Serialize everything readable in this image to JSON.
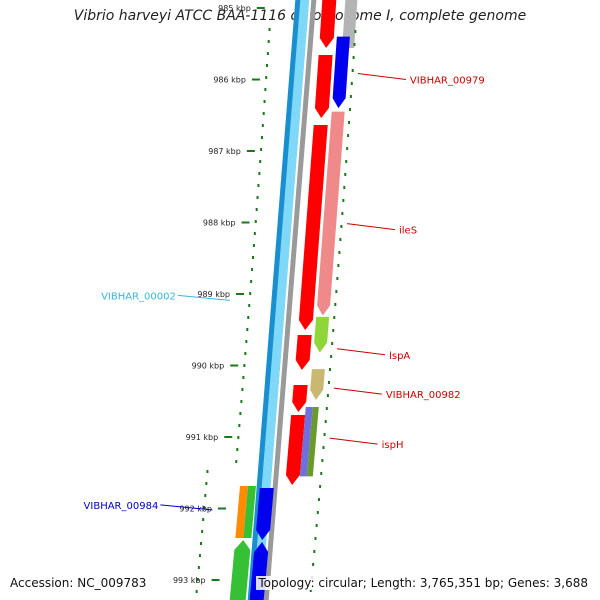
{
  "title": "Vibrio harveyi ATCC BAA-1116 chromosome I, complete genome",
  "footer": {
    "accession": "Accession: NC_009783",
    "summary": "Topology: circular; Length: 3,765,351 bp; Genes: 3,688"
  },
  "colors": {
    "backbone_dark": "#1a8fd0",
    "backbone_light": "#7fd8f8",
    "gray_track": "#b4b4b4",
    "cds": "#ff0000",
    "gene_blue": "#0000ee",
    "salmon": "#f08a8a",
    "lime": "#8fd63a",
    "olive": "#c8b870",
    "purple": "#7070dd",
    "olive_green": "#6a9a2a",
    "tick_green": "#1a7a1a",
    "orange": "#ff8c00",
    "green": "#36c036",
    "label_red": "#cc0000",
    "label_cyan": "#36b8dc",
    "label_blue": "#0000cc"
  },
  "ticks": [
    {
      "kbp": 985,
      "label": "985 kbp"
    },
    {
      "kbp": 986,
      "label": "986 kbp"
    },
    {
      "kbp": 987,
      "label": "987 kbp"
    },
    {
      "kbp": 988,
      "label": "988 kbp"
    },
    {
      "kbp": 989,
      "label": "989 kbp"
    },
    {
      "kbp": 990,
      "label": "990 kbp"
    },
    {
      "kbp": 991,
      "label": "991 kbp"
    },
    {
      "kbp": 992,
      "label": "992 kbp"
    },
    {
      "kbp": 993,
      "label": "993 kbp"
    }
  ],
  "features": [
    {
      "name": "VIBHAR_00979",
      "start_kbp": 985.4,
      "end_kbp": 986.4,
      "strand": "+",
      "track": "blue"
    },
    {
      "name": "ileS",
      "start_kbp": 986.45,
      "end_kbp": 989.3,
      "strand": "+",
      "track": "salmon"
    },
    {
      "name": "lspA",
      "start_kbp": 989.32,
      "end_kbp": 989.82,
      "strand": "+",
      "track": "lime"
    },
    {
      "name": "VIBHAR_00982",
      "start_kbp": 990.05,
      "end_kbp": 990.48,
      "strand": "+",
      "track": "olive"
    },
    {
      "name": "ispH",
      "start_kbp": 990.58,
      "end_kbp": 991.55,
      "strand": "+",
      "track": "purple"
    },
    {
      "name": "VIBHAR_00002",
      "start_kbp": 0,
      "end_kbp": 0,
      "strand": "-",
      "track": "outer"
    },
    {
      "name": "VIBHAR_00984",
      "start_kbp": 991.65,
      "end_kbp": 992.25,
      "strand": "-",
      "track": "inner"
    }
  ],
  "labels": [
    {
      "text": "VIBHAR_00979",
      "color": "label_red",
      "side": "right",
      "kbp": 986.0
    },
    {
      "text": "ileS",
      "color": "label_red",
      "side": "right",
      "kbp": 988.1
    },
    {
      "text": "lspA",
      "color": "label_red",
      "side": "right",
      "kbp": 989.85
    },
    {
      "text": "VIBHAR_00982",
      "color": "label_red",
      "side": "right",
      "kbp": 990.4
    },
    {
      "text": "ispH",
      "color": "label_red",
      "side": "right",
      "kbp": 991.1
    },
    {
      "text": "VIBHAR_00002",
      "color": "label_cyan",
      "side": "left",
      "kbp": 989.02
    },
    {
      "text": "VIBHAR_00984",
      "color": "label_blue",
      "side": "left",
      "kbp": 991.95
    }
  ]
}
